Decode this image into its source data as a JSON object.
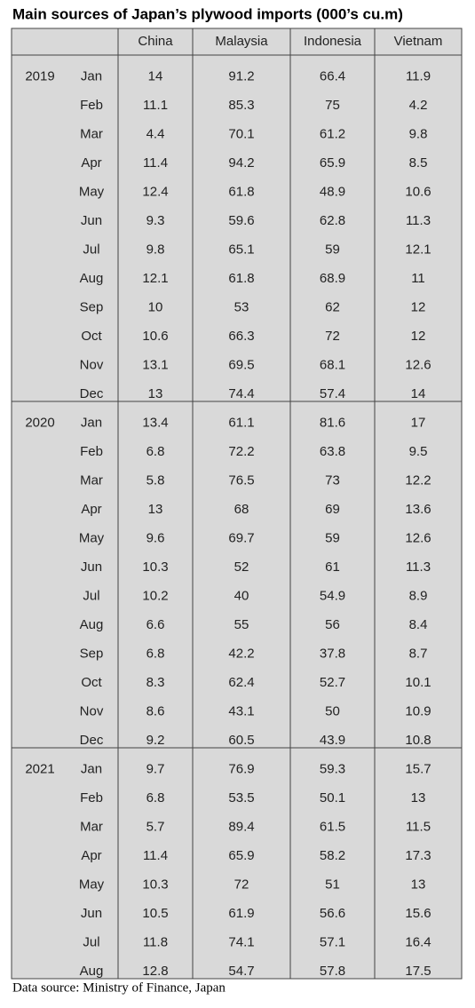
{
  "title": "Main sources of Japan’s plywood imports (000’s cu.m)",
  "table": {
    "header": [
      "China",
      "Malaysia",
      "Indonesia",
      "Vietnam"
    ],
    "groups": [
      {
        "year": "2019",
        "rows": [
          [
            "Jan",
            14,
            91.2,
            66.4,
            11.9
          ],
          [
            "Feb",
            11.1,
            85.3,
            75,
            4.2
          ],
          [
            "Mar",
            4.4,
            70.1,
            61.2,
            9.8
          ],
          [
            "Apr",
            11.4,
            94.2,
            65.9,
            8.5
          ],
          [
            "May",
            12.4,
            61.8,
            48.9,
            10.6
          ],
          [
            "Jun",
            9.3,
            59.6,
            62.8,
            11.3
          ],
          [
            "Jul",
            9.8,
            65.1,
            59,
            12.1
          ],
          [
            "Aug",
            12.1,
            61.8,
            68.9,
            11
          ],
          [
            "Sep",
            10,
            53,
            62,
            12
          ],
          [
            "Oct",
            10.6,
            66.3,
            72,
            12
          ],
          [
            "Nov",
            13.1,
            69.5,
            68.1,
            12.6
          ],
          [
            "Dec",
            13,
            74.4,
            57.4,
            14
          ]
        ]
      },
      {
        "year": "2020",
        "rows": [
          [
            "Jan",
            13.4,
            61.1,
            81.6,
            17
          ],
          [
            "Feb",
            6.8,
            72.2,
            63.8,
            9.5
          ],
          [
            "Mar",
            5.8,
            76.5,
            73,
            12.2
          ],
          [
            "Apr",
            13,
            68,
            69,
            13.6
          ],
          [
            "May",
            9.6,
            69.7,
            59,
            12.6
          ],
          [
            "Jun",
            10.3,
            52,
            61,
            11.3
          ],
          [
            "Jul",
            10.2,
            40,
            54.9,
            8.9
          ],
          [
            "Aug",
            6.6,
            55,
            56,
            8.4
          ],
          [
            "Sep",
            6.8,
            42.2,
            37.8,
            8.7
          ],
          [
            "Oct",
            8.3,
            62.4,
            52.7,
            10.1
          ],
          [
            "Nov",
            8.6,
            43.1,
            50,
            10.9
          ],
          [
            "Dec",
            9.2,
            60.5,
            43.9,
            10.8
          ]
        ]
      },
      {
        "year": "2021",
        "rows": [
          [
            "Jan",
            9.7,
            76.9,
            59.3,
            15.7
          ],
          [
            "Feb",
            6.8,
            53.5,
            50.1,
            13
          ],
          [
            "Mar",
            5.7,
            89.4,
            61.5,
            11.5
          ],
          [
            "Apr",
            11.4,
            65.9,
            58.2,
            17.3
          ],
          [
            "May",
            10.3,
            72,
            51,
            13
          ],
          [
            "Jun",
            10.5,
            61.9,
            56.6,
            15.6
          ],
          [
            "Jul",
            11.8,
            74.1,
            57.1,
            16.4
          ],
          [
            "Aug",
            12.8,
            54.7,
            57.8,
            17.5
          ]
        ]
      }
    ]
  },
  "source": "Data source: Ministry of Finance, Japan"
}
